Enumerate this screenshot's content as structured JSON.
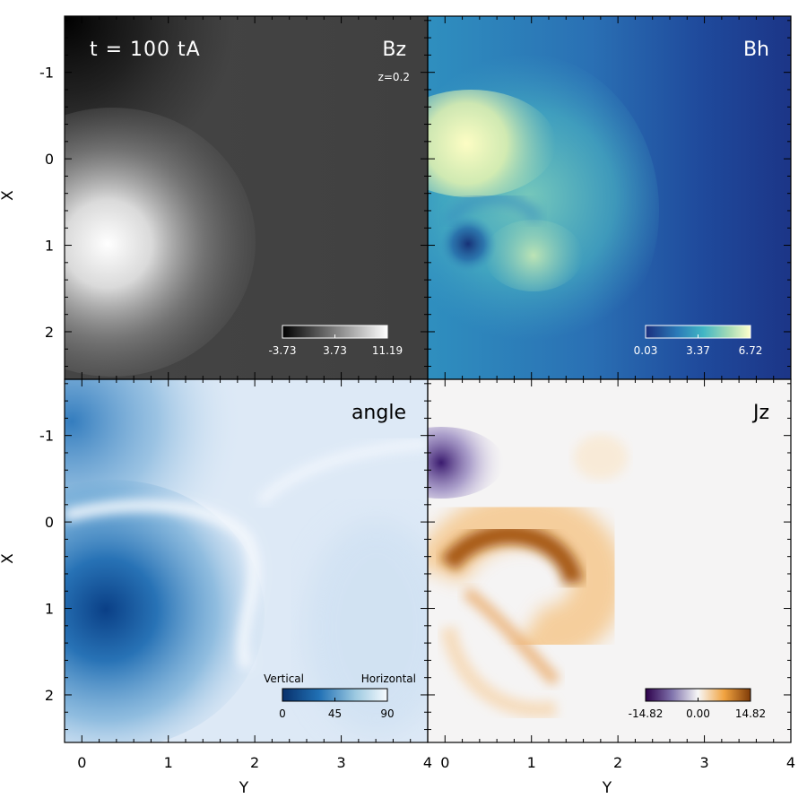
{
  "chart_data": [
    {
      "type": "heatmap",
      "panel": "top-left",
      "title": "Bz",
      "annotations": [
        "t = 100 tA",
        "z=0.2"
      ],
      "colormap": "grayscale",
      "colors": [
        "#000000",
        "#ffffff"
      ],
      "colorbar": {
        "ticks": [
          "-3.73",
          "3.73",
          "11.19"
        ],
        "min": -3.73,
        "max": 11.19,
        "placement": "bottom-right"
      },
      "features": [
        {
          "y": 0.3,
          "x": 1.05,
          "value": 11.19,
          "note": "positive peak (white)"
        },
        {
          "y": 0.0,
          "x": -1.5,
          "value": -3.73,
          "note": "negative region (black)"
        }
      ],
      "ylabel": "X",
      "xlabel": "",
      "xlim": [
        -0.2,
        4.0
      ],
      "ylim": [
        -1.65,
        2.55
      ],
      "xticks": [
        "0",
        "1",
        "2",
        "3",
        "4"
      ],
      "yticks": [
        "-1",
        "0",
        "1",
        "2"
      ]
    },
    {
      "type": "heatmap",
      "panel": "top-right",
      "title": "Bh",
      "colormap": "yellow-green-blue",
      "colors": [
        "#1b3a8e",
        "#41b6c4",
        "#ffffcc"
      ],
      "colorbar": {
        "ticks": [
          "0.03",
          "3.37",
          "6.72"
        ],
        "min": 0.03,
        "max": 6.72,
        "placement": "bottom-right"
      },
      "features": [
        {
          "y": 0.3,
          "x": 1.0,
          "value": 0.03,
          "note": "minimum (dark spot)"
        },
        {
          "y": 0.2,
          "x": -0.1,
          "value": 6.72,
          "note": "maximum (pale yellow)"
        }
      ],
      "xlim": [
        -0.2,
        4.0
      ],
      "ylim": [
        -1.65,
        2.55
      ],
      "xticks": [
        "0",
        "1",
        "2",
        "3",
        "4"
      ],
      "yticks": [
        "-1",
        "0",
        "1",
        "2"
      ]
    },
    {
      "type": "heatmap",
      "panel": "bottom-left",
      "title": "angle",
      "colormap": "blues",
      "colors": [
        "#08306b",
        "#2171b5",
        "#f7fbff"
      ],
      "colorbar": {
        "ticks": [
          "0",
          "45",
          "90"
        ],
        "min": 0,
        "max": 90,
        "end_labels": [
          "Vertical",
          "Horizontal"
        ],
        "placement": "bottom-right"
      },
      "features": [
        {
          "y": 0.3,
          "x": 1.05,
          "value": 0,
          "note": "vertical field (dark blue)"
        }
      ],
      "ylabel": "X",
      "xlabel": "Y",
      "xlim": [
        -0.2,
        4.0
      ],
      "ylim": [
        -1.65,
        2.55
      ],
      "xticks": [
        "0",
        "1",
        "2",
        "3",
        "4"
      ],
      "yticks": [
        "-1",
        "0",
        "1",
        "2"
      ]
    },
    {
      "type": "heatmap",
      "panel": "bottom-right",
      "title": "Jz",
      "colormap": "purple-white-orange",
      "colors": [
        "#2d004b",
        "#f7f7f7",
        "#7f3b08"
      ],
      "colorbar": {
        "ticks": [
          "-14.82",
          "0.00",
          "14.82"
        ],
        "min": -14.82,
        "max": 14.82,
        "placement": "bottom-right"
      },
      "features": [
        {
          "y": 0.7,
          "x": 0.6,
          "value": 14.82,
          "note": "positive current arc (orange)"
        },
        {
          "y": 0.0,
          "x": -0.65,
          "value": -14.82,
          "note": "negative current (purple)"
        }
      ],
      "xlabel": "Y",
      "xlim": [
        -0.2,
        4.0
      ],
      "ylim": [
        -1.65,
        2.55
      ],
      "xticks": [
        "0",
        "1",
        "2",
        "3",
        "4"
      ],
      "yticks": [
        "-1",
        "0",
        "1",
        "2"
      ]
    }
  ]
}
